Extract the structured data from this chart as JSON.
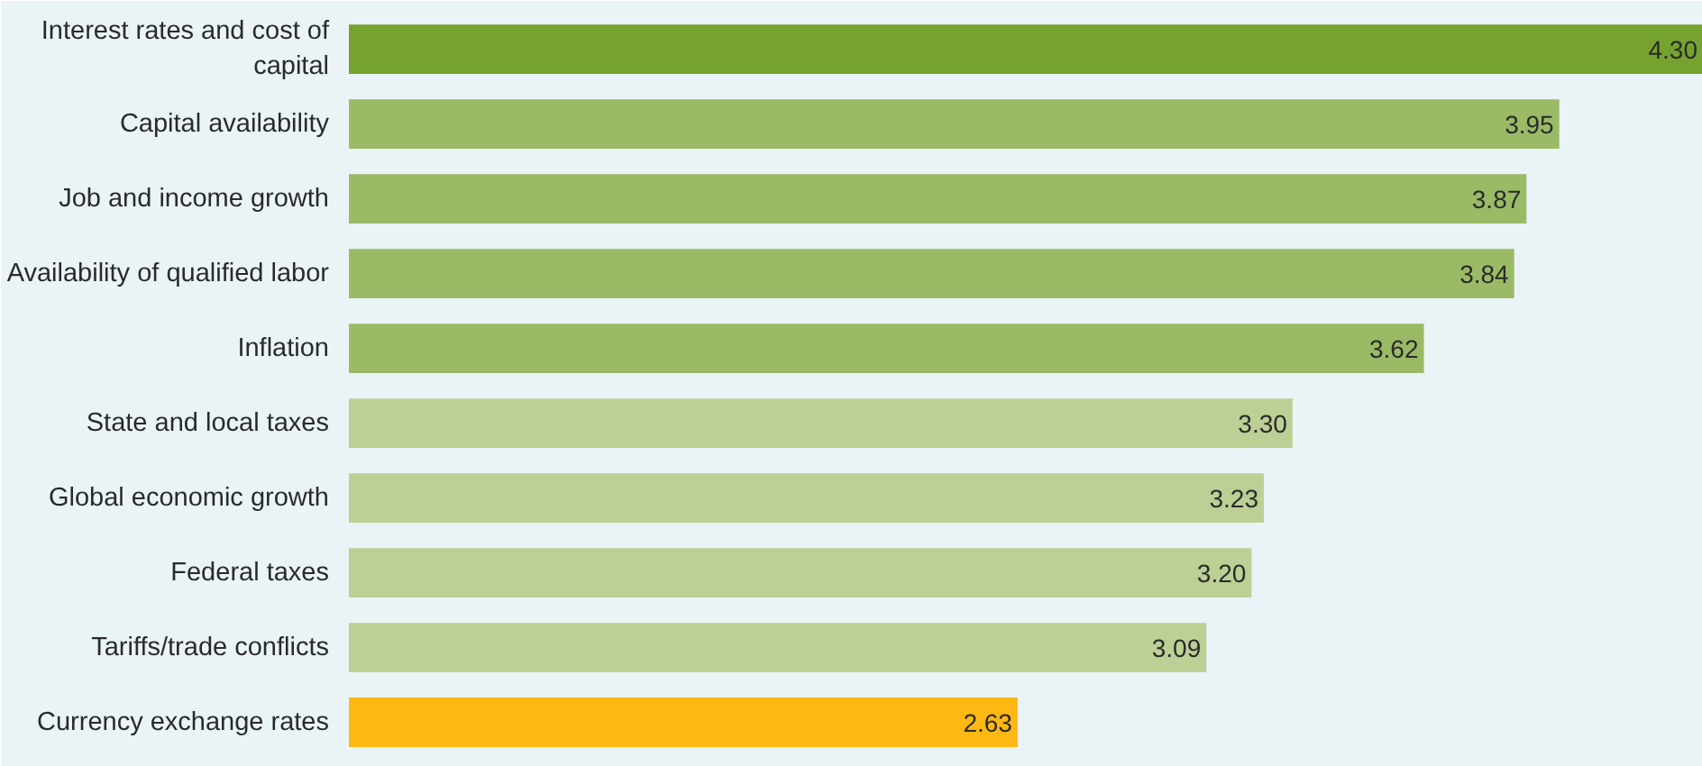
{
  "chart_data": {
    "type": "bar",
    "orientation": "horizontal",
    "categories": [
      "Interest rates and cost of capital",
      "Capital availability",
      "Job and income growth",
      "Availability of qualified labor",
      "Inflation",
      "State and local taxes",
      "Global economic growth",
      "Federal taxes",
      "Tariffs/trade conflicts",
      "Currency exchange rates"
    ],
    "values": [
      4.3,
      3.95,
      3.87,
      3.84,
      3.62,
      3.3,
      3.23,
      3.2,
      3.09,
      2.63
    ],
    "colors": [
      "#76a32f",
      "#9aba66",
      "#9aba66",
      "#9aba66",
      "#9aba66",
      "#bccf95",
      "#bccf95",
      "#bccf95",
      "#bccf95",
      "#fdb813"
    ],
    "value_labels": [
      "4.30",
      "3.95",
      "3.87",
      "3.84",
      "3.62",
      "3.30",
      "3.23",
      "3.20",
      "3.09",
      "2.63"
    ],
    "xlim": [
      1,
      4.3
    ],
    "tick_labels": "y"
  }
}
